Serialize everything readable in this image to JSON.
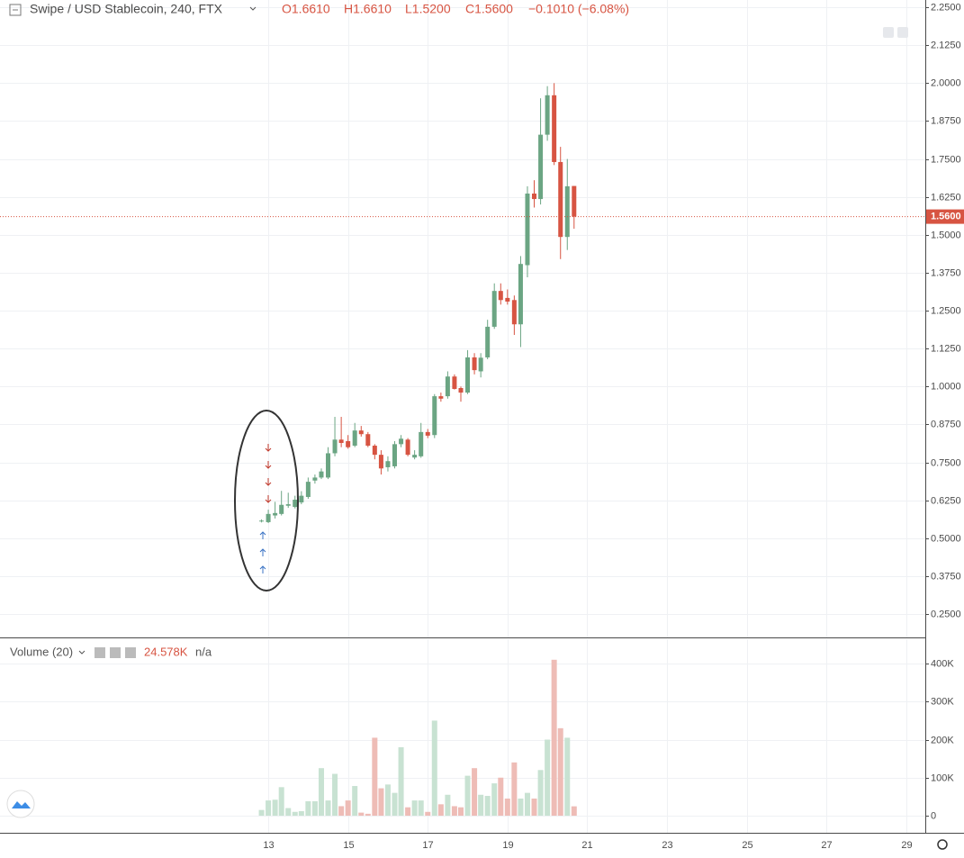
{
  "chart_data": {
    "type": "candlestick",
    "title": "Swipe / USD Stablecoin, 240, FTX",
    "ohlc_legend": [
      "O1.6610",
      "H1.6610",
      "L1.5200",
      "C1.5600"
    ],
    "change_label": "−0.1010 (−6.08%)",
    "last_price_label": "1.5600",
    "x": [
      12.83,
      13,
      13.17,
      13.33,
      13.5,
      13.67,
      13.83,
      14,
      14.17,
      14.33,
      14.5,
      14.67,
      14.83,
      15,
      15.17,
      15.33,
      15.5,
      15.67,
      15.83,
      16,
      16.17,
      16.33,
      16.5,
      16.67,
      16.83,
      17,
      17.17,
      17.33,
      17.5,
      17.67,
      17.83,
      18,
      18.17,
      18.33,
      18.5,
      18.67,
      18.83,
      19,
      19.17,
      19.33,
      19.5,
      19.67,
      19.83,
      20,
      20.17,
      20.33,
      20.5,
      20.67
    ],
    "open": [
      0.556,
      0.553,
      0.575,
      0.58,
      0.607,
      0.603,
      0.618,
      0.636,
      0.69,
      0.7,
      0.7,
      0.78,
      0.825,
      0.82,
      0.805,
      0.855,
      0.843,
      0.805,
      0.775,
      0.734,
      0.737,
      0.81,
      0.825,
      0.766,
      0.77,
      0.85,
      0.84,
      0.968,
      0.968,
      1.033,
      0.995,
      0.98,
      1.096,
      1.05,
      1.096,
      1.197,
      1.315,
      1.292,
      1.285,
      1.205,
      1.4,
      1.636,
      1.618,
      1.83,
      1.96,
      1.74,
      1.493,
      1.661
    ],
    "high": [
      0.562,
      0.594,
      0.62,
      0.656,
      0.65,
      0.64,
      0.655,
      0.7,
      0.71,
      0.73,
      0.8,
      0.9,
      0.9,
      0.84,
      0.88,
      0.87,
      0.85,
      0.81,
      0.79,
      0.77,
      0.82,
      0.84,
      0.83,
      0.79,
      0.88,
      0.86,
      0.975,
      0.98,
      1.05,
      1.04,
      1.0,
      1.12,
      1.11,
      1.11,
      1.22,
      1.34,
      1.34,
      1.32,
      1.3,
      1.43,
      1.66,
      1.68,
      1.95,
      1.99,
      2.0,
      1.79,
      1.75,
      1.661
    ],
    "low": [
      0.552,
      0.55,
      0.565,
      0.575,
      0.6,
      0.598,
      0.612,
      0.63,
      0.68,
      0.695,
      0.695,
      0.77,
      0.8,
      0.795,
      0.8,
      0.835,
      0.8,
      0.76,
      0.71,
      0.72,
      0.73,
      0.8,
      0.77,
      0.76,
      0.765,
      0.83,
      0.83,
      0.95,
      0.96,
      0.99,
      0.95,
      0.975,
      1.04,
      1.03,
      1.09,
      1.19,
      1.27,
      1.27,
      1.17,
      1.13,
      1.36,
      1.59,
      1.6,
      1.81,
      1.73,
      1.42,
      1.45,
      1.52
    ],
    "close": [
      0.558,
      0.58,
      0.583,
      0.61,
      0.612,
      0.627,
      0.64,
      0.686,
      0.7,
      0.72,
      0.78,
      0.825,
      0.814,
      0.8,
      0.855,
      0.843,
      0.805,
      0.775,
      0.73,
      0.754,
      0.81,
      0.828,
      0.775,
      0.775,
      0.85,
      0.838,
      0.968,
      0.96,
      1.033,
      0.992,
      0.98,
      1.096,
      1.054,
      1.095,
      1.197,
      1.315,
      1.285,
      1.28,
      1.205,
      1.404,
      1.636,
      1.618,
      1.83,
      1.96,
      1.74,
      1.493,
      1.66,
      1.56
    ],
    "up_color": "#6ba583",
    "down_color": "#d75442",
    "xlim": [
      6.27,
      29.48
    ],
    "xticks": [
      13,
      15,
      17,
      19,
      21,
      23,
      25,
      27,
      29
    ],
    "ylim": [
      0.173,
      2.274
    ],
    "yticks": [
      {
        "value": 0.25,
        "label": "0.2500"
      },
      {
        "value": 0.375,
        "label": "0.3750"
      },
      {
        "value": 0.5,
        "label": "0.5000"
      },
      {
        "value": 0.625,
        "label": "0.6250"
      },
      {
        "value": 0.75,
        "label": "0.7500"
      },
      {
        "value": 0.875,
        "label": "0.8750"
      },
      {
        "value": 1.0,
        "label": "1.0000"
      },
      {
        "value": 1.125,
        "label": "1.1250"
      },
      {
        "value": 1.25,
        "label": "1.2500"
      },
      {
        "value": 1.375,
        "label": "1.3750"
      },
      {
        "value": 1.5,
        "label": "1.5000"
      },
      {
        "value": 1.625,
        "label": "1.6250"
      },
      {
        "value": 1.75,
        "label": "1.7500"
      },
      {
        "value": 1.875,
        "label": "1.8750"
      },
      {
        "value": 2.0,
        "label": "2.0000"
      },
      {
        "value": 2.125,
        "label": "2.1250"
      },
      {
        "value": 2.25,
        "label": "2.2500"
      }
    ],
    "grid": true,
    "volume": {
      "title": "Volume (20)",
      "last_label": "24.578K",
      "ma_label": "n/a",
      "values": [
        15000,
        40000,
        42000,
        75000,
        20000,
        10000,
        12000,
        38000,
        38000,
        125000,
        40000,
        110000,
        25000,
        40000,
        78000,
        8000,
        5000,
        205000,
        72000,
        82000,
        60000,
        180000,
        22000,
        40000,
        40000,
        10000,
        250000,
        30000,
        55000,
        25000,
        22000,
        105000,
        125000,
        55000,
        52000,
        85000,
        100000,
        45000,
        140000,
        45000,
        60000,
        45000,
        120000,
        200000,
        410000,
        230000,
        205000,
        24578
      ],
      "up_color": "#c8e2d2",
      "down_color": "#eebcb6",
      "ylim": [
        -45000,
        464000
      ],
      "yticks": [
        0,
        {
          "value": 100000,
          "label": "100K"
        },
        {
          "value": 200000,
          "label": "200K"
        },
        {
          "value": 300000,
          "label": "300K"
        },
        {
          "value": 400000,
          "label": "400K"
        }
      ]
    }
  }
}
